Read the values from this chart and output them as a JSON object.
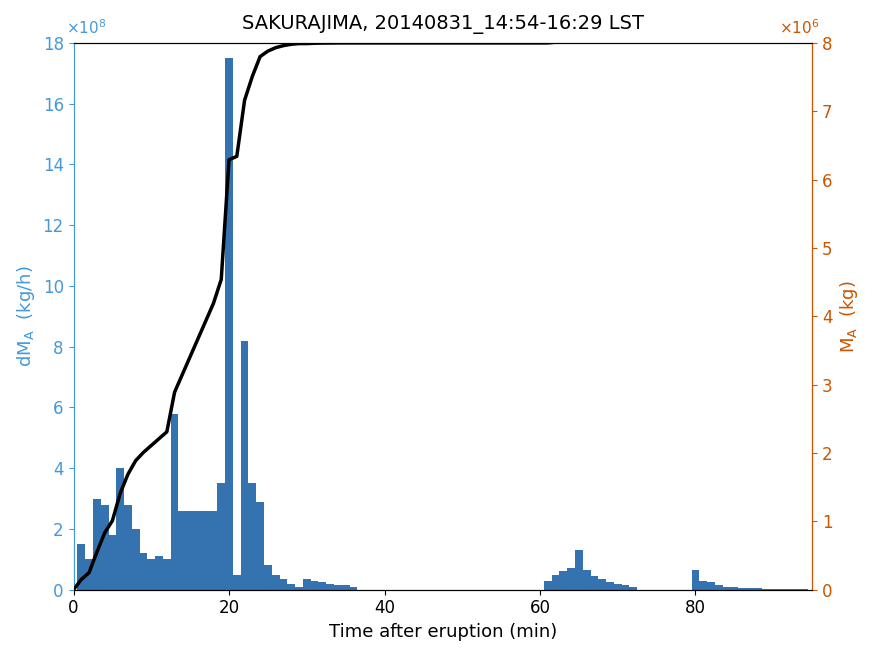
{
  "title": "SAKURAJIMA, 20140831_14:54-16:29 LST",
  "xlabel": "Time after eruption (min)",
  "ylabel_left": "dM_A  (kg/h)",
  "ylabel_right": "M_A  (kg)",
  "bar_color": "#3572B0",
  "line_color": "#000000",
  "left_axis_color": "#4499DD",
  "right_axis_color": "#CC5500",
  "bar_width": 1.0,
  "xlim": [
    0,
    95
  ],
  "ylim_left": [
    0,
    1800000000.0
  ],
  "ylim_right": [
    0,
    8000000.0
  ],
  "bar_times": [
    1,
    2,
    3,
    4,
    5,
    6,
    7,
    8,
    9,
    10,
    11,
    12,
    13,
    14,
    15,
    16,
    17,
    18,
    19,
    20,
    21,
    22,
    23,
    24,
    25,
    26,
    27,
    28,
    29,
    30,
    31,
    32,
    33,
    34,
    35,
    36,
    37,
    38,
    39,
    40,
    41,
    42,
    43,
    44,
    45,
    46,
    60,
    61,
    62,
    63,
    64,
    65,
    66,
    67,
    68,
    69,
    70,
    71,
    72,
    80,
    81,
    82,
    83,
    84,
    85,
    86,
    87,
    88,
    89,
    90,
    91,
    92,
    93,
    94
  ],
  "bar_heights": [
    150000000.0,
    100000000.0,
    300000000.0,
    280000000.0,
    180000000.0,
    400000000.0,
    280000000.0,
    200000000.0,
    120000000.0,
    100000000.0,
    110000000.0,
    100000000.0,
    580000000.0,
    260000000.0,
    260000000.0,
    260000000.0,
    260000000.0,
    260000000.0,
    350000000.0,
    1750000000.0,
    50000000.0,
    820000000.0,
    350000000.0,
    290000000.0,
    80000000.0,
    50000000.0,
    35000000.0,
    20000000.0,
    10000000.0,
    35000000.0,
    30000000.0,
    25000000.0,
    20000000.0,
    15000000.0,
    15000000.0,
    10000000.0,
    0.0,
    0.0,
    0.0,
    0.0,
    0.0,
    0.0,
    0.0,
    0.0,
    0.0,
    0.0,
    0.0,
    30000000.0,
    50000000.0,
    60000000.0,
    70000000.0,
    130000000.0,
    65000000.0,
    45000000.0,
    35000000.0,
    25000000.0,
    20000000.0,
    15000000.0,
    10000000.0,
    65000000.0,
    30000000.0,
    25000000.0,
    15000000.0,
    10000000.0,
    10000000.0,
    5000000.0,
    5000000.0,
    5000000.0,
    2000000.0,
    2000000.0,
    1000000.0,
    1000000.0,
    1000000.0,
    1000000.0
  ],
  "cumulative_x": [
    0,
    1,
    2,
    3,
    4,
    5,
    6,
    7,
    8,
    9,
    10,
    11,
    12,
    13,
    14,
    15,
    16,
    17,
    18,
    19,
    20,
    21,
    22,
    23,
    24,
    25,
    26,
    27,
    28,
    29,
    30,
    31,
    32,
    33,
    34,
    35,
    36,
    37,
    38,
    39,
    40,
    41,
    42,
    43,
    44,
    45,
    46,
    55,
    60,
    61,
    62,
    63,
    64,
    65,
    66,
    67,
    68,
    69,
    70,
    71,
    72,
    73,
    80,
    81,
    82,
    83,
    84,
    85,
    86,
    87,
    88,
    89,
    90,
    91,
    92,
    93,
    94,
    95
  ],
  "cumulative_y": [
    0.0,
    150000.0,
    250000.0,
    550000.0,
    830000.0,
    1010000.0,
    1410000.0,
    1690000.0,
    1890000.0,
    2010000.0,
    2110000.0,
    2210000.0,
    2310000.0,
    2890000.0,
    3150000.0,
    3410000.0,
    3670000.0,
    3930000.0,
    4190000.0,
    4540000.0,
    6290000.0,
    6340000.0,
    7160000.0,
    7510000.0,
    7800000.0,
    7880000.0,
    7930000.0,
    7960000.0,
    7980000.0,
    7990000.0,
    7990000.0,
    7995000.0,
    7997000.0,
    7998000.0,
    7999000.0,
    7999500.0,
    7999500.0,
    7999500.0,
    7999500.0,
    7999500.0,
    7999500.0,
    7999500.0,
    7999500.0,
    7999500.0,
    7999500.0,
    7999500.0,
    7999500.0,
    7999500.0,
    7999500.0,
    8000000.0,
    8010000.0,
    8020000.0,
    8040000.0,
    8070000.0,
    8083000.0,
    8090000.0,
    8097000.0,
    8102000.0,
    8106000.0,
    8110000.0,
    8110000.0,
    8115000.0,
    8115000.0,
    8115000.0,
    8120000.0,
    8125000.0,
    8127000.0,
    8130000.0,
    8132000.0,
    8133000.0,
    8133000.0,
    8133000.0,
    8134000.0,
    8134000.0,
    8134000.0,
    8135000.0,
    8135000.0,
    8135000.0
  ]
}
